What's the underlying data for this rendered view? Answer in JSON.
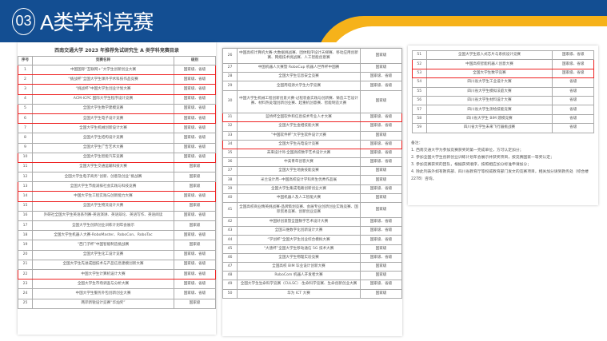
{
  "header": {
    "number": "03",
    "title": "A类学科竞赛"
  },
  "colors": {
    "header": "#134e92",
    "accent": "#f6b21a",
    "highlight": "#e22222"
  },
  "document": {
    "title": "西南交通大学 2023 年推荐免试研究生 A 类学科竞赛目录",
    "columns": [
      "序号",
      "竞赛名称",
      "级别"
    ],
    "rows": [
      {
        "no": "1",
        "name": "中国国际“互联网+”大学生创新创业大赛",
        "level": "国家级、省级",
        "highlighted": true
      },
      {
        "no": "2",
        "name": "“挑战杯”全国大学生课外学术科技作品竞赛",
        "level": "国家级、省级",
        "highlighted": true
      },
      {
        "no": "3",
        "name": "“挑战杯”中国大学生创业计划大赛",
        "level": "国家级、省级",
        "highlighted": true
      },
      {
        "no": "4",
        "name": "ACM-ICPC 国际大学生程序设计竞赛",
        "level": "国家级、省级",
        "highlighted": false
      },
      {
        "no": "5",
        "name": "全国大学生数学建模竞赛",
        "level": "国家级、省级",
        "highlighted": true
      },
      {
        "no": "6",
        "name": "全国大学生电子设计竞赛",
        "level": "国家级、省级",
        "highlighted": true
      },
      {
        "no": "7",
        "name": "全国大学生机械创新设计大赛",
        "level": "国家级、省级",
        "highlighted": false
      },
      {
        "no": "8",
        "name": "全国大学生结构设计竞赛",
        "level": "国家级、省级",
        "highlighted": false
      },
      {
        "no": "9",
        "name": "全国大学生广告艺术大赛",
        "level": "国家级、省级",
        "highlighted": false
      },
      {
        "no": "10",
        "name": "全国大学生智能汽车竞赛",
        "level": "国家级、省级",
        "highlighted": true
      },
      {
        "no": "11",
        "name": "全国大学生交通运输科技大赛",
        "level": "国家级",
        "highlighted": false
      },
      {
        "no": "12",
        "name": "全国大学生电子商务“创新、创意及创业”挑战赛",
        "level": "国家级",
        "highlighted": false
      },
      {
        "no": "13",
        "name": "全国大学生节能减排社会实践与科技竞赛",
        "level": "国家级",
        "highlighted": true
      },
      {
        "no": "14",
        "name": "中国大学生工程实践与创新能力大赛",
        "level": "国家级、省级",
        "highlighted": true
      },
      {
        "no": "15",
        "name": "全国大学生物流设计大赛",
        "level": "国家级",
        "highlighted": false
      },
      {
        "no": "16",
        "name": "外研社全国大学生英语系列赛-英语演讲、英语辩论、英语写作、英语阅读",
        "level": "国家级、省级",
        "highlighted": false
      },
      {
        "no": "17",
        "name": "全国大学生创新创业训练计划年会展示",
        "level": "国家级",
        "highlighted": false
      },
      {
        "no": "18",
        "name": "全国大学生机器人大赛-RoboMaster、RoboCon、RoboTac",
        "level": "国家级、省级",
        "highlighted": false
      },
      {
        "no": "19",
        "name": "“西门子杯”中国智能制造挑战赛",
        "level": "国家级",
        "highlighted": false
      },
      {
        "no": "20",
        "name": "全国大学生化工设计竞赛",
        "level": "国家级、省级",
        "highlighted": false
      },
      {
        "no": "21",
        "name": "全国大学生先进成图技术与产品信息建模创新大赛",
        "level": "国家级、省级",
        "highlighted": false
      },
      {
        "no": "22",
        "name": "中国大学生计算机设计大赛",
        "level": "国家级、省级",
        "highlighted": true
      },
      {
        "no": "23",
        "name": "全国大学生市场调查与分析大赛",
        "level": "国家级、省级",
        "highlighted": false
      },
      {
        "no": "24",
        "name": "中国大学生服务外包创新创业大赛",
        "level": "国家级、省级",
        "highlighted": false
      },
      {
        "no": "25",
        "name": "两岸新锐设计竞赛“华灿奖”",
        "level": "国家级",
        "highlighted": false
      },
      {
        "no": "26",
        "name": "中国高校计算机大赛-大数据挑战赛、团体程序设计天梯赛、移动应用创新赛、网络技术挑战赛、人工智能创意赛",
        "level": "国家级",
        "highlighted": false
      },
      {
        "no": "27",
        "name": "中国机器人大赛暨 RoboCup 机器人世界杯中国赛",
        "level": "国家级",
        "highlighted": false
      },
      {
        "no": "28",
        "name": "全国大学生信息安全竞赛",
        "level": "国家级、省级",
        "highlighted": false
      },
      {
        "no": "29",
        "name": "全国周培源大学生力学竞赛",
        "level": "国家级、省级",
        "highlighted": false
      },
      {
        "no": "30",
        "name": "中国大学生机械工程创新创意大赛-过程装备实践与创新赛、铸造工艺设计赛、材料热处理创新创业赛、起重机创意赛、智能制造大赛",
        "level": "国家级",
        "highlighted": false
      },
      {
        "no": "31",
        "name": "蓝桥杯全国软件和信息技术专业人才大赛",
        "level": "国家级、省级",
        "highlighted": true
      },
      {
        "no": "32",
        "name": "全国大学生金相技能大赛",
        "level": "国家级、省级",
        "highlighted": false
      },
      {
        "no": "33",
        "name": "“中国软件杯”大学生软件设计大赛",
        "level": "国家级",
        "highlighted": false
      },
      {
        "no": "34",
        "name": "全国大学生光电设计竞赛",
        "level": "国家级、省级",
        "highlighted": true
      },
      {
        "no": "35",
        "name": "未来设计师·全国高校数字艺术设计大赛",
        "level": "国家级、省级",
        "highlighted": false
      },
      {
        "no": "36",
        "name": "中美青年创客大赛",
        "level": "国家级、省级",
        "highlighted": false
      },
      {
        "no": "37",
        "name": "全国大学生地质技能竞赛",
        "level": "国家级",
        "highlighted": false
      },
      {
        "no": "38",
        "name": "米兰设计周--中国高校设计学科师生优秀作品展",
        "level": "国家级",
        "highlighted": false
      },
      {
        "no": "39",
        "name": "全国大学生集成电路创新创业大赛",
        "level": "国家级、省级",
        "highlighted": false
      },
      {
        "no": "40",
        "name": "中国机器人及人工智能大赛",
        "level": "国家级",
        "highlighted": false
      },
      {
        "no": "41",
        "name": "全国高校商业精英挑战赛-品牌策划竞赛、会展专业创新创业实践竞赛、国际贸易竞赛、创新创业竞赛",
        "level": "国家级",
        "highlighted": false
      },
      {
        "no": "42",
        "name": "中国好创意暨全国数字艺术设计大赛",
        "level": "国家级、省级",
        "highlighted": false
      },
      {
        "no": "43",
        "name": "全国三维数字化创新设计大赛",
        "level": "国家级、省级",
        "highlighted": false
      },
      {
        "no": "44",
        "name": "“学创杯”全国大学生创业综合模拟大赛",
        "level": "国家级、省级",
        "highlighted": false
      },
      {
        "no": "45",
        "name": "“大唐杯”全国大学生移动通信 5G 技术大赛",
        "level": "国家级",
        "highlighted": false
      },
      {
        "no": "46",
        "name": "全国大学生物理实验竞赛",
        "level": "国家级、省级",
        "highlighted": false
      },
      {
        "no": "47",
        "name": "全国高校 BIM 毕业设计创新大赛",
        "level": "国家级",
        "highlighted": false
      },
      {
        "no": "48",
        "name": "RoboCom 机器人开发者大赛",
        "level": "国家级",
        "highlighted": false
      },
      {
        "no": "49",
        "name": "全国大学生生命科学竞赛（CULSC）-生命科学竞赛、生命创新创业大赛",
        "level": "国家级、省级",
        "highlighted": false
      },
      {
        "no": "50",
        "name": "华为 ICT 大赛",
        "level": "国家级",
        "highlighted": false
      },
      {
        "no": "51",
        "name": "全国大学生嵌入式芯片与系统设计竞赛",
        "level": "国家级、省级",
        "highlighted": false
      },
      {
        "no": "52",
        "name": "中国高校智能机器人创意大赛",
        "level": "国家级、省级",
        "highlighted": true
      },
      {
        "no": "53",
        "name": "全国大学生数学竞赛",
        "level": "国家级、省级",
        "highlighted": true
      },
      {
        "no": "54",
        "name": "四川省大学生工业设计大赛",
        "level": "省级",
        "highlighted": false
      },
      {
        "no": "55",
        "name": "四川省大学生模拟法庭大赛",
        "level": "省级",
        "highlighted": false
      },
      {
        "no": "56",
        "name": "四川省大学生材料设计大赛",
        "level": "省级",
        "highlighted": false
      },
      {
        "no": "57",
        "name": "四川省大学生测绘技能竞赛",
        "level": "省级",
        "highlighted": false
      },
      {
        "no": "58",
        "name": "四川省大学生 BIM 建模竞赛",
        "level": "省级",
        "highlighted": false
      },
      {
        "no": "59",
        "name": "四川省大学生未来飞行器挑战赛",
        "level": "省级",
        "highlighted": false
      }
    ],
    "notes_title": "备注：",
    "notes": [
      "1. 西南交通大学为参加竞赛获奖的第一完成单位，方可认定加分；",
      "2. 参加全国大学生创新创业训练计划年会展示并获奖项目，按竞赛国家一等奖认定；",
      "3. 参加竞赛获奖的团队，根据获奖顺序，按照相应加分标准申请加分；",
      "4. 除此列表外如有教育部、四川省教育厅等权威教育部门发文的竞赛项目，相关加分请到教务处（综合楼2278）咨询。"
    ]
  }
}
